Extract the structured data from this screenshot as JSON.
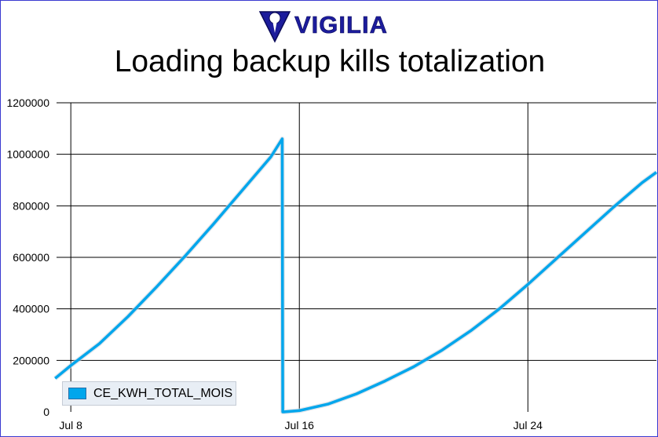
{
  "logo": {
    "text": "VIGILIA",
    "icon": "shield-lock-icon",
    "color": "#1c1c9c"
  },
  "chart_data": {
    "type": "line",
    "title": "Loading backup kills totalization",
    "xlabel": "",
    "ylabel": "",
    "ylim": [
      0,
      1200000
    ],
    "y_ticks": [
      0,
      200000,
      400000,
      600000,
      800000,
      1000000,
      1200000
    ],
    "y_tick_labels": [
      "0",
      "200000",
      "400000",
      "600000",
      "800000",
      "1000000",
      "1200000"
    ],
    "x_ticks": [
      8,
      16,
      24
    ],
    "x_tick_labels": [
      "Jul 8",
      "Jul 16",
      "Jul 24"
    ],
    "xlim": [
      7.5,
      28.5
    ],
    "grid": true,
    "legend": {
      "position": "bottom-left"
    },
    "series": [
      {
        "name": "CE_KWH_TOTAL_MOIS",
        "color": "#00a6ec",
        "x": [
          7.45,
          8.0,
          9.0,
          10.0,
          11.0,
          12.0,
          13.0,
          14.0,
          15.0,
          15.4,
          15.42,
          15.45,
          16.0,
          17.0,
          18.0,
          19.0,
          20.0,
          21.0,
          22.0,
          23.0,
          24.0,
          25.0,
          26.0,
          27.0,
          28.0,
          28.5
        ],
        "y": [
          130000,
          180000,
          265000,
          370000,
          485000,
          605000,
          730000,
          860000,
          990000,
          1060000,
          0,
          0,
          5000,
          30000,
          70000,
          120000,
          175000,
          240000,
          315000,
          400000,
          495000,
          595000,
          695000,
          795000,
          890000,
          930000
        ]
      }
    ]
  }
}
